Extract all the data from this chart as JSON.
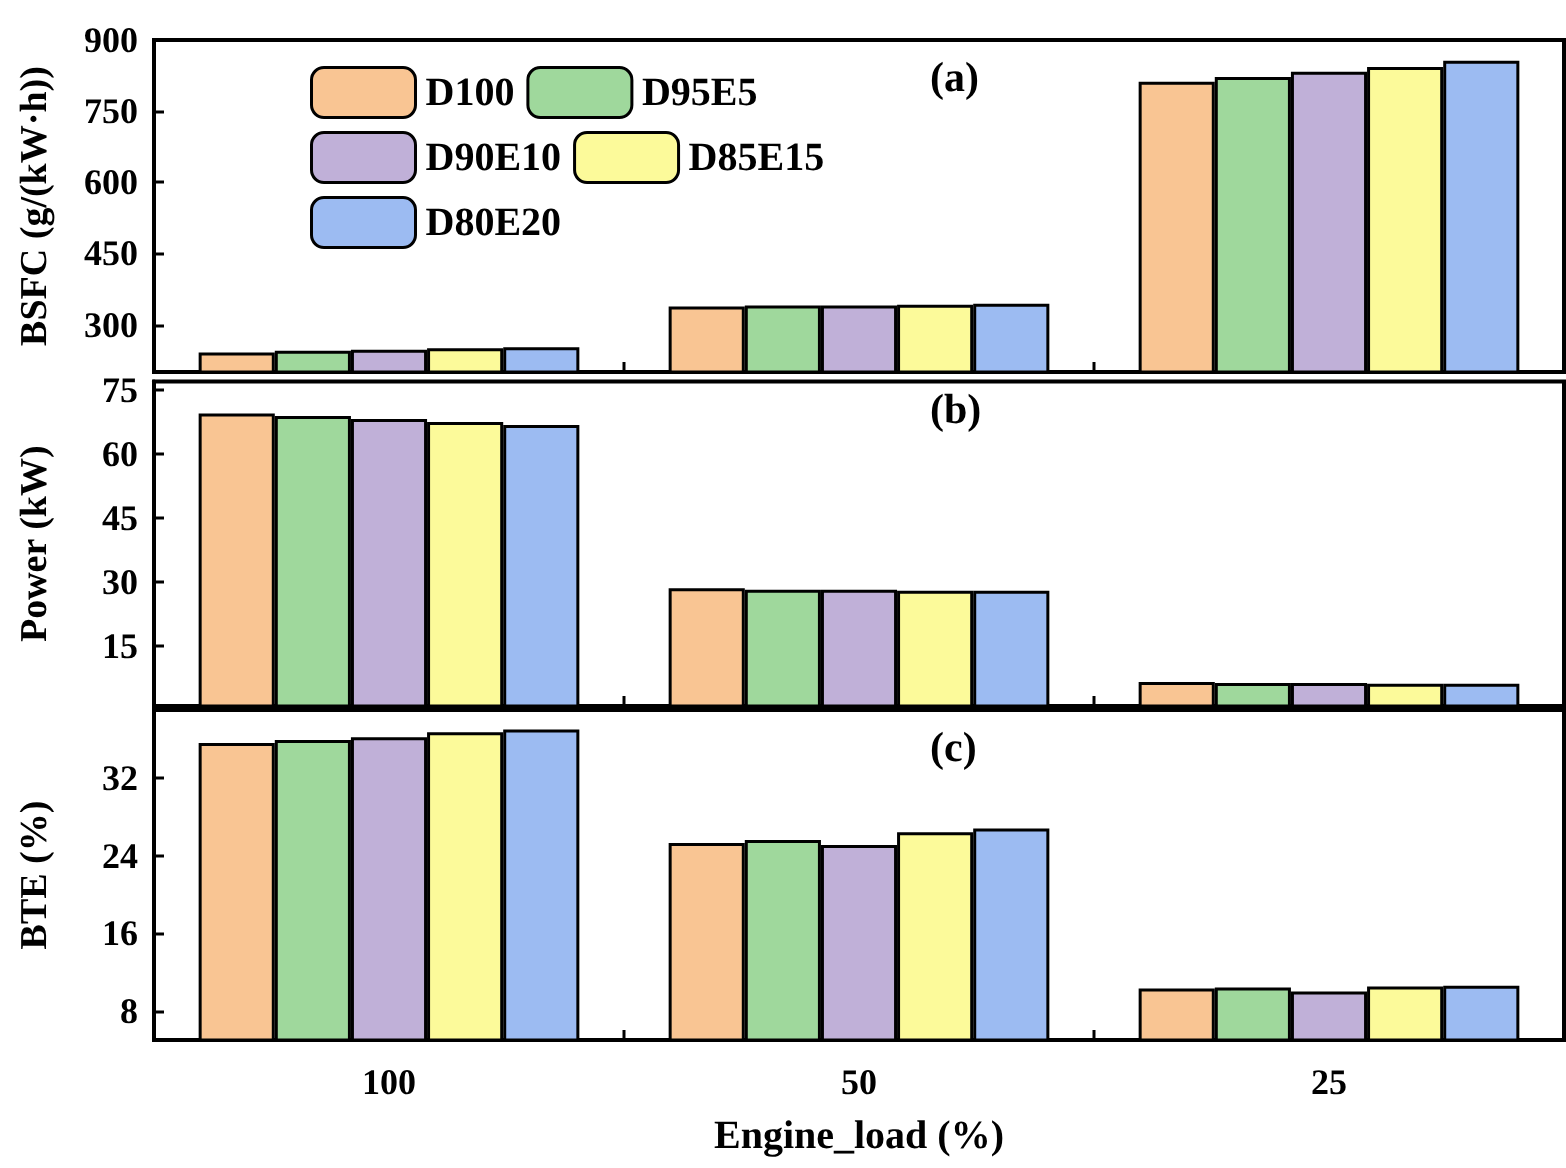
{
  "chart_data": [
    {
      "type": "bar",
      "ylabel": "BSFC (g/(kW·h))",
      "annotations": [
        "(a)"
      ],
      "categories": [
        "100",
        "50",
        "25"
      ],
      "ylim": [
        200,
        900
      ],
      "yticks": [
        300,
        450,
        600,
        750,
        900
      ],
      "grid": false,
      "legend": "top left",
      "tick_labels": "y",
      "series": [
        {
          "name": "D100",
          "color": "#f9c593",
          "values": [
            241,
            338,
            812
          ]
        },
        {
          "name": "D95E5",
          "color": "#9fd89c",
          "values": [
            245,
            340,
            822
          ]
        },
        {
          "name": "D90E10",
          "color": "#c0b0d8",
          "values": [
            247,
            340,
            833
          ]
        },
        {
          "name": "D85E15",
          "color": "#fcfa9a",
          "values": [
            250,
            342,
            843
          ]
        },
        {
          "name": "D80E20",
          "color": "#9cbbf2",
          "values": [
            252,
            344,
            856
          ]
        }
      ]
    },
    {
      "type": "bar",
      "ylabel": "Power (kW)",
      "annotations": [
        "(b)"
      ],
      "categories": [
        "100",
        "50",
        "25"
      ],
      "ylim": [
        1,
        77
      ],
      "yticks": [
        15,
        30,
        45,
        60,
        75
      ],
      "grid": false,
      "tick_labels": "y",
      "series": [
        {
          "color": "#f9c593",
          "values": [
            69.5,
            28.6,
            6.6
          ]
        },
        {
          "color": "#9fd89c",
          "values": [
            68.9,
            28.2,
            6.4
          ]
        },
        {
          "color": "#c0b0d8",
          "values": [
            68.2,
            28.2,
            6.4
          ]
        },
        {
          "color": "#fcfa9a",
          "values": [
            67.5,
            28.0,
            6.2
          ]
        },
        {
          "color": "#9cbbf2",
          "values": [
            66.8,
            28.0,
            6.2
          ]
        }
      ]
    },
    {
      "type": "bar",
      "ylabel": "BTE (%)",
      "xlabel": "Engine_load (%)",
      "annotations": [
        "(c)"
      ],
      "categories": [
        "100",
        "50",
        "25"
      ],
      "ylim": [
        5,
        39
      ],
      "yticks": [
        8,
        16,
        24,
        32
      ],
      "grid": false,
      "series": [
        {
          "color": "#f9c593",
          "values": [
            35.6,
            25.3,
            10.3
          ]
        },
        {
          "color": "#9fd89c",
          "values": [
            35.9,
            25.6,
            10.4
          ]
        },
        {
          "color": "#c0b0d8",
          "values": [
            36.2,
            25.1,
            10.0
          ]
        },
        {
          "color": "#fcfa9a",
          "values": [
            36.7,
            26.4,
            10.5
          ]
        },
        {
          "color": "#9cbbf2",
          "values": [
            37.0,
            26.8,
            10.6
          ]
        }
      ]
    }
  ]
}
